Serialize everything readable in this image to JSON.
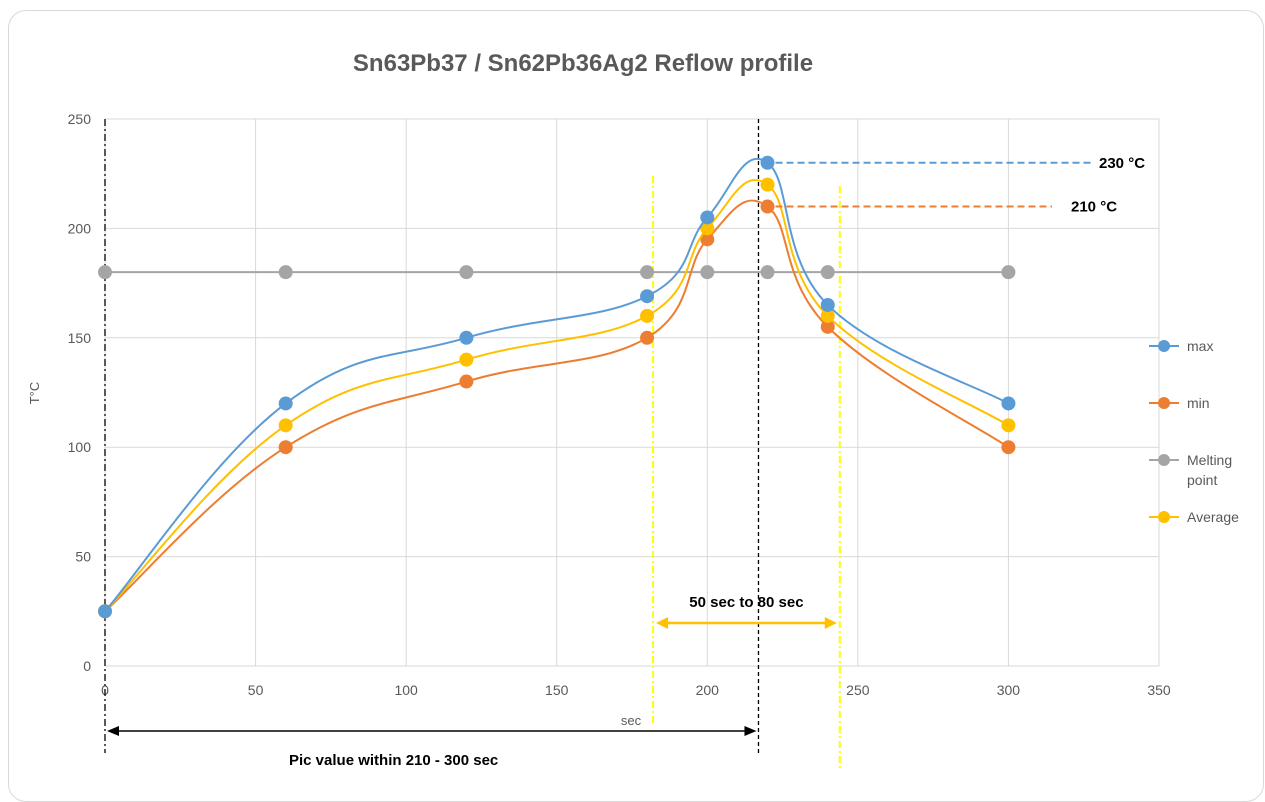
{
  "chart_data": {
    "type": "line",
    "title": "Sn63Pb37 / Sn62Pb36Ag2 Reflow profile",
    "xlabel": "sec",
    "ylabel": "T°C",
    "xlim": [
      0,
      350
    ],
    "ylim": [
      0,
      250
    ],
    "x_ticks": [
      0,
      50,
      100,
      150,
      200,
      250,
      300,
      350
    ],
    "y_ticks": [
      0,
      50,
      100,
      150,
      200,
      250
    ],
    "grid": true,
    "legend_position": "right",
    "series": [
      {
        "name": "max",
        "color": "#5b9bd5",
        "x": [
          0,
          60,
          120,
          180,
          200,
          220,
          240,
          300
        ],
        "y": [
          25,
          120,
          150,
          169,
          205,
          230,
          165,
          120
        ]
      },
      {
        "name": "min",
        "color": "#ed7d31",
        "x": [
          0,
          60,
          120,
          180,
          200,
          220,
          240,
          300
        ],
        "y": [
          25,
          100,
          130,
          150,
          195,
          210,
          155,
          100
        ]
      },
      {
        "name": "Melting point",
        "color": "#a5a5a5",
        "x": [
          0,
          60,
          120,
          180,
          200,
          220,
          240,
          300
        ],
        "y": [
          180,
          180,
          180,
          180,
          180,
          180,
          180,
          180
        ]
      },
      {
        "name": "Average",
        "color": "#ffc000",
        "x": [
          0,
          60,
          120,
          180,
          200,
          220,
          240,
          300
        ],
        "y": [
          25,
          110,
          140,
          160,
          200,
          220,
          160,
          110
        ]
      }
    ],
    "annotations": {
      "peak_max": {
        "text": "230 °C",
        "y": 230,
        "color": "#5b9bd5"
      },
      "peak_min": {
        "text": "210 °C",
        "y": 210,
        "color": "#ed7d31"
      },
      "window_text": "50 sec to 80 sec",
      "window_from_x": 182,
      "window_to_x": 244,
      "window_arrow_color": "#ffc000",
      "peak_time_text": "Pic value within 210 - 300 sec",
      "peak_time_from_x": 0,
      "peak_time_to_x": 217
    }
  }
}
